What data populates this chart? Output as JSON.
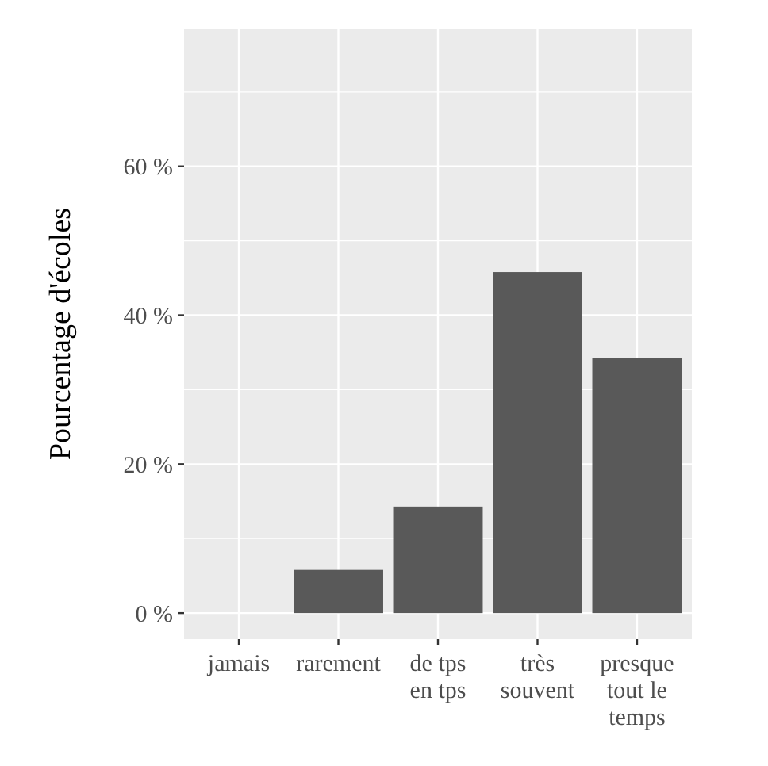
{
  "chart_data": {
    "type": "bar",
    "ylabel": "Pourcentage d'écoles",
    "categories": [
      "jamais",
      "rarement",
      "de tps\nen tps",
      "très\nsouvent",
      "presque\ntout le\ntemps"
    ],
    "values": [
      0,
      5.8,
      14.3,
      45.8,
      34.3
    ],
    "color": "#595959",
    "ylim": [
      -3.5,
      78.5
    ],
    "yticks": [
      {
        "value": 0,
        "label": "0 %"
      },
      {
        "value": 20,
        "label": "20 %"
      },
      {
        "value": 40,
        "label": "40 %"
      },
      {
        "value": 60,
        "label": "60 %"
      }
    ],
    "grid": true
  }
}
